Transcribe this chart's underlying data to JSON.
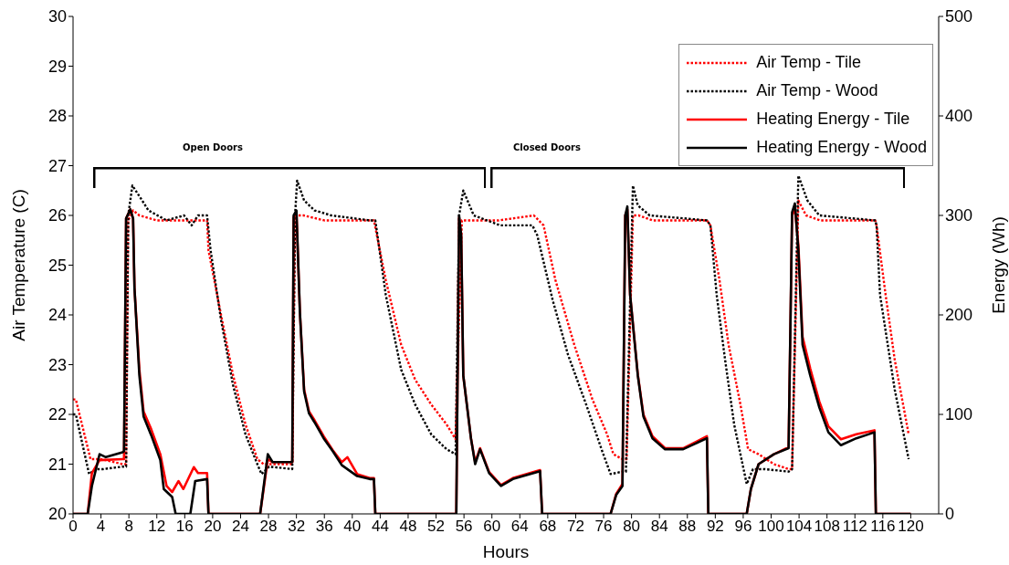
{
  "chart_data": {
    "type": "line",
    "xlabel": "Hours",
    "ylabel": "Air Temperature (C)",
    "y2label": "Energy (Wh)",
    "xlim": [
      0,
      124
    ],
    "xticks": [
      0,
      4,
      8,
      12,
      16,
      20,
      24,
      28,
      32,
      36,
      40,
      44,
      48,
      52,
      56,
      60,
      64,
      68,
      72,
      76,
      80,
      84,
      88,
      92,
      96,
      100,
      104,
      108,
      112,
      116,
      120
    ],
    "ylim": [
      20,
      30
    ],
    "yticks": [
      20,
      21,
      22,
      23,
      24,
      25,
      26,
      27,
      28,
      29,
      30
    ],
    "y2lim": [
      0,
      500
    ],
    "y2ticks": [
      0,
      100,
      200,
      300,
      400,
      500
    ],
    "grid": false,
    "legend": "top right",
    "annotations": [
      "Open Doors",
      "Closed Doors"
    ],
    "series": [
      {
        "name": "Air Temp - Tile",
        "color": "#ff0000",
        "line_style": "dotted",
        "x": [
          0,
          0.4,
          2.5,
          4,
          7.1,
          7.6,
          7.9,
          8.6,
          9.5,
          12,
          16,
          19.2,
          19.4,
          21.2,
          22.9,
          24.7,
          26.4,
          27.3,
          31.4,
          31.8,
          33,
          36,
          40,
          43.1,
          44.8,
          47,
          49,
          51.3,
          53.5,
          54.8,
          55.7,
          57,
          61,
          66,
          67.4,
          69.1,
          71.8,
          74.4,
          76.5,
          77.4,
          78.7,
          79.3,
          80.2,
          81,
          83,
          86,
          90.8,
          91.3,
          92.6,
          93.9,
          95.6,
          96.7,
          98.2,
          100.4,
          102.5,
          103,
          103.9,
          105,
          107,
          110,
          114.9,
          115.1,
          116.4,
          117.7,
          119.7
        ],
        "values": [
          22.3,
          22.3,
          21.1,
          21.1,
          21.0,
          21.0,
          25.9,
          26.1,
          26.0,
          25.9,
          25.9,
          25.9,
          25.3,
          24.0,
          22.8,
          21.8,
          21.1,
          21.0,
          21.0,
          26.0,
          26.0,
          25.9,
          25.9,
          25.9,
          24.7,
          23.4,
          22.7,
          22.2,
          21.8,
          21.5,
          25.9,
          25.9,
          25.9,
          26.0,
          25.8,
          24.7,
          23.4,
          22.3,
          21.6,
          21.2,
          21.1,
          21.1,
          26.0,
          26.0,
          25.9,
          25.9,
          25.9,
          25.8,
          24.7,
          23.4,
          22.2,
          21.3,
          21.2,
          21.0,
          20.9,
          20.9,
          26.3,
          26.0,
          25.9,
          25.9,
          25.9,
          25.8,
          24.4,
          23.1,
          21.6
        ]
      },
      {
        "name": "Air Temp - Wood",
        "color": "#000000",
        "line_style": "dotted",
        "x": [
          0,
          0.4,
          2.3,
          3.2,
          4.3,
          7.1,
          7.6,
          7.9,
          8.5,
          9.9,
          10.8,
          13.4,
          15.9,
          17,
          17.9,
          19.2,
          19.7,
          21.2,
          22.9,
          24.7,
          26.4,
          27,
          28.1,
          31.4,
          31.8,
          32.1,
          33.1,
          34.6,
          37,
          42.5,
          43.3,
          44.8,
          47,
          49,
          51.3,
          53.5,
          54.8,
          55.3,
          55.9,
          57.4,
          61.2,
          65.8,
          66.5,
          68.7,
          70.9,
          73.5,
          75.7,
          77,
          78.7,
          79.2,
          80.2,
          80.9,
          82.6,
          90.8,
          91.3,
          92.2,
          93.4,
          94.7,
          96.5,
          97.4,
          99.1,
          102.5,
          103,
          103.9,
          105.2,
          106.9,
          114.9,
          115.1,
          115.6,
          117.7,
          119.7
        ],
        "values": [
          22.0,
          22.0,
          20.8,
          20.9,
          20.9,
          20.95,
          20.95,
          26.0,
          26.6,
          26.3,
          26.1,
          25.9,
          26.0,
          25.8,
          26.0,
          26.0,
          25.3,
          23.9,
          22.6,
          21.6,
          21.0,
          20.8,
          20.95,
          20.9,
          26.0,
          26.7,
          26.3,
          26.1,
          26.0,
          25.9,
          25.9,
          24.4,
          22.9,
          22.2,
          21.6,
          21.3,
          21.2,
          26.0,
          26.5,
          26.0,
          25.8,
          25.8,
          25.6,
          24.3,
          23.2,
          22.2,
          21.3,
          20.8,
          20.85,
          20.85,
          26.6,
          26.2,
          26.0,
          25.9,
          25.8,
          24.4,
          23.1,
          21.8,
          20.6,
          20.9,
          20.9,
          20.85,
          20.9,
          26.8,
          26.3,
          26.0,
          25.9,
          25.8,
          24.4,
          22.5,
          21.1
        ]
      },
      {
        "name": "Heating Energy - Tile",
        "color": "#ff0000",
        "line_style": "solid",
        "axis": "y2",
        "x": [
          0,
          2.1,
          2.7,
          3.8,
          7.1,
          7.3,
          7.6,
          8.2,
          8.6,
          8.8,
          9.5,
          10.1,
          11.2,
          12.5,
          13.4,
          14.2,
          15.1,
          15.8,
          17.3,
          17.9,
          19.2,
          19.4,
          26.8,
          27.9,
          28.6,
          31.4,
          31.6,
          32,
          32.5,
          33.1,
          33.8,
          34.6,
          35.9,
          37.2,
          38.5,
          39.3,
          40.7,
          42.5,
          43.1,
          43.3,
          54.9,
          55.3,
          55.6,
          55.9,
          57,
          57.6,
          58.3,
          59.6,
          61.3,
          63,
          66.9,
          67.2,
          77,
          77.8,
          78.7,
          79.1,
          79.4,
          79.8,
          80.9,
          81.7,
          83,
          84.8,
          87.4,
          90.8,
          91,
          96.5,
          97.1,
          98.2,
          100.4,
          102.5,
          103,
          103.4,
          103.9,
          104.5,
          105.6,
          106.9,
          108.2,
          110,
          112.2,
          114.8,
          115,
          120
        ],
        "values": [
          0,
          0,
          41,
          54,
          55,
          55,
          297,
          306,
          297,
          227,
          145,
          103,
          85,
          60,
          28,
          22,
          33,
          25,
          47,
          41,
          41,
          0,
          0,
          55,
          52,
          52,
          298,
          303,
          202,
          125,
          103,
          94,
          78,
          64,
          52,
          57,
          40,
          36,
          36,
          0,
          0,
          298,
          280,
          139,
          76,
          52,
          66,
          42,
          29,
          36,
          44,
          0,
          0,
          20,
          30,
          300,
          306,
          220,
          140,
          100,
          78,
          66,
          66,
          78,
          0,
          0,
          25,
          50,
          60,
          67,
          300,
          307,
          270,
          178,
          146,
          113,
          88,
          75,
          80,
          84,
          0,
          0
        ]
      },
      {
        "name": "Heating Energy - Wood",
        "color": "#000000",
        "line_style": "solid",
        "axis": "y2",
        "x": [
          0,
          2.1,
          2.7,
          3.8,
          4.7,
          7.1,
          7.3,
          7.6,
          8.2,
          8.6,
          8.8,
          9.5,
          10.1,
          11.2,
          12.5,
          13,
          14.2,
          14.7,
          16.8,
          17.5,
          19.2,
          19.4,
          26.8,
          27.9,
          28.6,
          31.4,
          31.6,
          32,
          32.5,
          33.1,
          33.8,
          34.6,
          35.9,
          37.2,
          38.5,
          40.7,
          42.5,
          43.1,
          43.3,
          54.9,
          55.3,
          55.6,
          55.9,
          57,
          57.6,
          58.3,
          59.6,
          61.3,
          63,
          66.9,
          67.2,
          77,
          77.8,
          78.7,
          79.1,
          79.4,
          79.8,
          80.9,
          81.7,
          83,
          84.8,
          87.4,
          90.8,
          91,
          96.5,
          97.1,
          98.2,
          100.4,
          102.5,
          103,
          103.4,
          103.9,
          104.5,
          105.6,
          106.9,
          108.2,
          110,
          112.2,
          114.8,
          115,
          120
        ],
        "values": [
          0,
          0,
          28,
          60,
          57,
          62,
          63,
          297,
          306,
          297,
          227,
          139,
          98,
          79,
          54,
          25,
          17,
          0,
          0,
          33,
          35,
          0,
          0,
          60,
          52,
          52,
          300,
          305,
          202,
          123,
          101,
          92,
          76,
          63,
          49,
          38,
          35,
          35,
          0,
          0,
          300,
          280,
          139,
          76,
          50,
          65,
          41,
          28,
          35,
          43,
          0,
          0,
          19,
          28,
          300,
          309,
          220,
          139,
          98,
          76,
          65,
          65,
          76,
          0,
          0,
          25,
          50,
          60,
          66,
          303,
          312,
          265,
          170,
          139,
          107,
          82,
          69,
          76,
          82,
          0,
          0
        ]
      }
    ]
  }
}
